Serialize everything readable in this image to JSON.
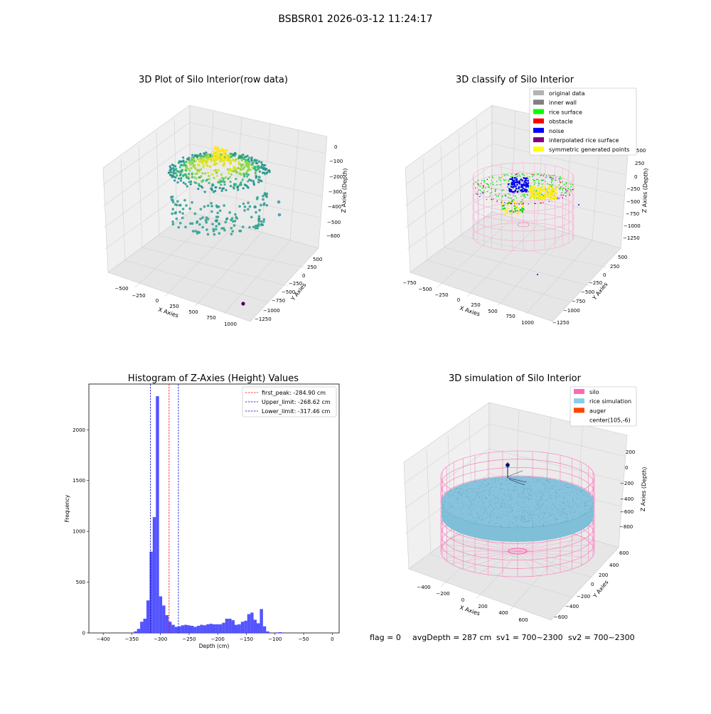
{
  "page": {
    "suptitle": "BSBSR01 2026-03-12 11:24:17"
  },
  "footer": {
    "flag": "flag = 0",
    "avg_depth": "avgDepth = 287 cm",
    "sv1": "sv1 = 700~2300",
    "sv2": "sv2 = 700~2300"
  },
  "colors": {
    "pane": "#f2f2f2",
    "pane_dark": "#ebebeb",
    "grid": "#d0d0d0",
    "hist_bar": "#4b4bff",
    "upper_line": "#0000cc",
    "lower_line": "#0000cc",
    "peak_line": "#ff0000",
    "silo": "#ff69b4",
    "rice_sim": "#87ceeb",
    "auger": "#ff4500",
    "original": "#b3b3b3",
    "inner_wall": "#808080",
    "rice_surface": "#00ff00",
    "obstacle": "#ff0000",
    "noise": "#0000ff",
    "interp": "#800080",
    "symmetric": "#ffff00"
  },
  "chart_data": [
    {
      "type": "scatter",
      "title": "3D Plot of Silo Interior(row data)",
      "xlabel": "X Axies",
      "ylabel": "Y Axies",
      "zlabel": "Z Axies (Depth)",
      "x_ticks": [
        "−500",
        "−250",
        "0",
        "250",
        "500",
        "750",
        "1000"
      ],
      "y_ticks": [
        "500",
        "250",
        "0",
        "−250",
        "−500",
        "−750",
        "−1000",
        "−1250"
      ],
      "z_ticks": [
        "0",
        "−100",
        "−200",
        "−300",
        "−400",
        "−500",
        "−600"
      ],
      "x_range": [
        -650,
        1100
      ],
      "y_range": [
        -1350,
        650
      ],
      "z_range": [
        -650,
        50
      ],
      "grid": true
    },
    {
      "type": "scatter",
      "title": "3D classify of Silo Interior",
      "xlabel": "X Axies",
      "ylabel": "Y Axies",
      "zlabel": "Z Axies (Depth)",
      "x_ticks": [
        "−750",
        "−500",
        "−250",
        "0",
        "250",
        "500",
        "750",
        "1000"
      ],
      "y_ticks": [
        "500",
        "250",
        "0",
        "−250",
        "−500",
        "−750",
        "−1000",
        "−1250"
      ],
      "z_ticks": [
        "250",
        "0",
        "−250",
        "−500",
        "−750",
        "−1000",
        "−1250"
      ],
      "z_ticks_hidden_top": "500",
      "x_range": [
        -800,
        1100
      ],
      "y_range": [
        -1350,
        650
      ],
      "z_range": [
        -1300,
        550
      ],
      "legend_position": "top-right",
      "legend": [
        {
          "label": "original data",
          "color": "#b3b3b3"
        },
        {
          "label": "inner wall",
          "color": "#808080"
        },
        {
          "label": "rice surface",
          "color": "#00ff00"
        },
        {
          "label": "obstacle",
          "color": "#ff0000"
        },
        {
          "label": "noise",
          "color": "#0000ff"
        },
        {
          "label": "interpolated rice surface",
          "color": "#800080"
        },
        {
          "label": "symmetric generated points",
          "color": "#ffff00"
        }
      ],
      "grid": true
    },
    {
      "type": "bar",
      "title": "Histogram of Z-Axies (Height) Values",
      "xlabel": "Depth (cm)",
      "ylabel": "Frequency",
      "x_ticks": [
        "−400",
        "−350",
        "−300",
        "−250",
        "−200",
        "−150",
        "−100",
        "−50",
        "0"
      ],
      "x_tick_values": [
        -400,
        -350,
        -300,
        -250,
        -200,
        -150,
        -100,
        -50,
        0
      ],
      "y_ticks": [
        "0",
        "500",
        "1000",
        "1500",
        "2000"
      ],
      "y_tick_values": [
        0,
        500,
        1000,
        1500,
        2000
      ],
      "xlim": [
        -425,
        12
      ],
      "ylim": [
        0,
        2450
      ],
      "bin_width": 5.5,
      "bins": [
        [
          -346.5,
          15
        ],
        [
          -341,
          40
        ],
        [
          -335.5,
          110
        ],
        [
          -330,
          140
        ],
        [
          -324.5,
          320
        ],
        [
          -319,
          800
        ],
        [
          -313.5,
          1140
        ],
        [
          -308,
          2330
        ],
        [
          -302.5,
          360
        ],
        [
          -297,
          270
        ],
        [
          -291.5,
          175
        ],
        [
          -286,
          110
        ],
        [
          -280.5,
          80
        ],
        [
          -275,
          60
        ],
        [
          -269.5,
          65
        ],
        [
          -264,
          75
        ],
        [
          -258.5,
          80
        ],
        [
          -253,
          75
        ],
        [
          -247.5,
          70
        ],
        [
          -242,
          60
        ],
        [
          -236.5,
          70
        ],
        [
          -231,
          80
        ],
        [
          -225.5,
          75
        ],
        [
          -220,
          85
        ],
        [
          -214.5,
          90
        ],
        [
          -209,
          85
        ],
        [
          -203.5,
          85
        ],
        [
          -198,
          85
        ],
        [
          -192.5,
          100
        ],
        [
          -187,
          140
        ],
        [
          -181.5,
          140
        ],
        [
          -176,
          125
        ],
        [
          -170.5,
          80
        ],
        [
          -165,
          85
        ],
        [
          -159.5,
          110
        ],
        [
          -154,
          120
        ],
        [
          -148.5,
          185
        ],
        [
          -143,
          200
        ],
        [
          -137.5,
          130
        ],
        [
          -132,
          95
        ],
        [
          -126.5,
          235
        ],
        [
          -121,
          65
        ],
        [
          -115.5,
          15
        ],
        [
          -99,
          5
        ],
        [
          -93.5,
          8
        ]
      ],
      "vlines": [
        {
          "label": "first_peak: -284.90 cm",
          "x": -284.9,
          "color": "#ff0000"
        },
        {
          "label": "Upper_limit: -268.62 cm",
          "x": -268.62,
          "color": "#0000cc"
        },
        {
          "label": "Lower_limit: -317.46 cm",
          "x": -317.46,
          "color": "#0000cc"
        }
      ],
      "legend_position": "top-right"
    },
    {
      "type": "scatter",
      "title": "3D simulation of Silo Interior",
      "xlabel": "X Axies",
      "ylabel": "Y Axies",
      "zlabel": "Z Axies (Depth)",
      "x_ticks": [
        "−400",
        "−200",
        "0",
        "200",
        "400",
        "600"
      ],
      "y_ticks": [
        "600",
        "400",
        "200",
        "0",
        "−200",
        "−400",
        "−600"
      ],
      "z_ticks": [
        "200",
        "0",
        "−200",
        "−400",
        "−600",
        "−800"
      ],
      "legend_position": "top-right",
      "legend": [
        {
          "label": "silo",
          "color": "#ff69b4"
        },
        {
          "label": "rice simulation",
          "color": "#87ceeb"
        },
        {
          "label": "auger",
          "color": "#ff4500"
        },
        {
          "label": "center(105,-6)",
          "color": ""
        }
      ],
      "grid": true
    }
  ]
}
